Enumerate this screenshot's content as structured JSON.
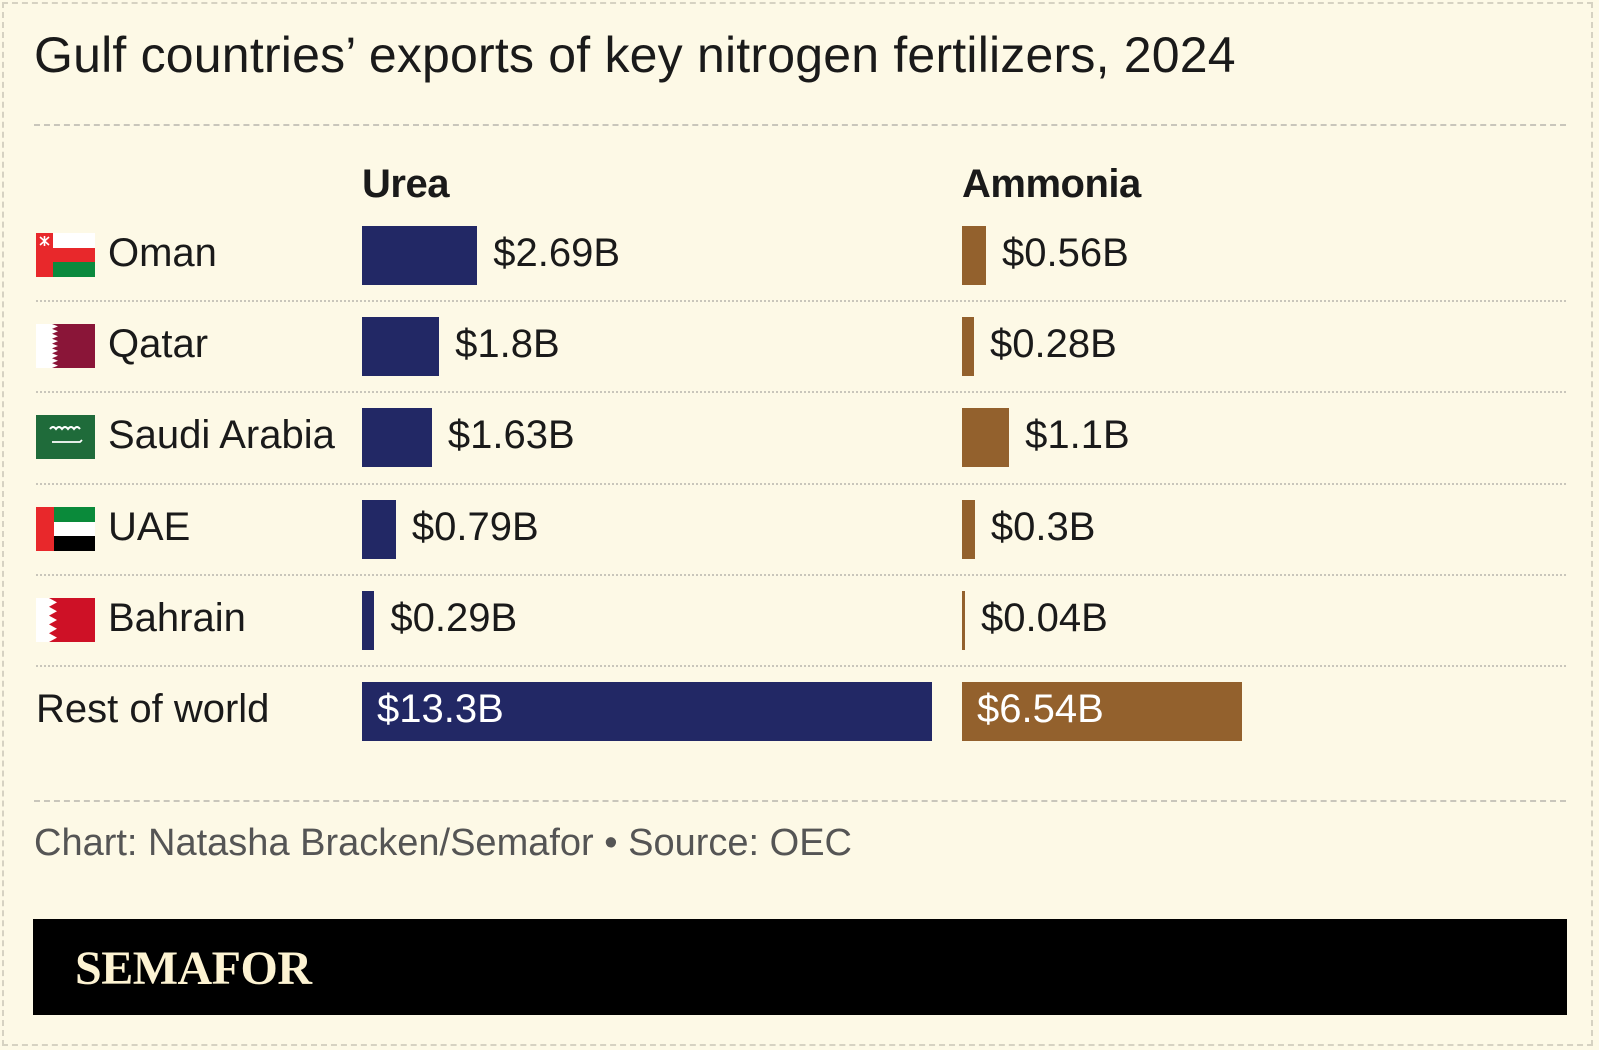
{
  "title": "Gulf countries’ exports of key nitrogen fertilizers, 2024",
  "credit": "Chart: Natasha Bracken/Semafor • Source: OEC",
  "brand": "SEMAFOR",
  "colors": {
    "urea": "#222865",
    "ammonia": "#93612d",
    "background": "#fdf9e6"
  },
  "chart_data": {
    "type": "bar",
    "title": "Gulf countries’ exports of key nitrogen fertilizers, 2024",
    "unit": "$ billions",
    "categories": [
      "Oman",
      "Qatar",
      "Saudi Arabia",
      "UAE",
      "Bahrain",
      "Rest of world"
    ],
    "flags": [
      "oman-flag-icon",
      "qatar-flag-icon",
      "saudi-arabia-flag-icon",
      "uae-flag-icon",
      "bahrain-flag-icon",
      null
    ],
    "series": [
      {
        "name": "Urea",
        "values": [
          2.69,
          1.8,
          1.63,
          0.79,
          0.29,
          13.3
        ],
        "labels": [
          "$2.69B",
          "$1.8B",
          "$1.63B",
          "$0.79B",
          "$0.29B",
          "$13.3B"
        ]
      },
      {
        "name": "Ammonia",
        "values": [
          0.56,
          0.28,
          1.1,
          0.3,
          0.04,
          6.54
        ],
        "labels": [
          "$0.56B",
          "$0.28B",
          "$1.1B",
          "$0.3B",
          "$0.04B",
          "$6.54B"
        ]
      }
    ]
  }
}
